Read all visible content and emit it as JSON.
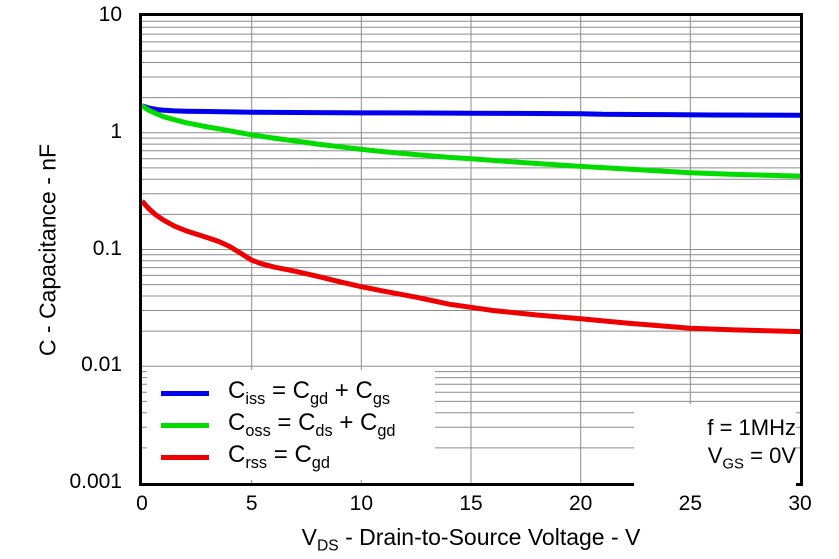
{
  "chart_data": {
    "type": "line",
    "title": "",
    "xlabel": "V_{DS} - Drain-to-Source Voltage - V",
    "ylabel": "C - Capacitance - nF",
    "x_axis": {
      "min": 0,
      "max": 30,
      "scale": "linear",
      "ticks": [
        0,
        5,
        10,
        15,
        20,
        25,
        30
      ]
    },
    "y_axis": {
      "min": 0.001,
      "max": 10,
      "scale": "log",
      "ticks": [
        10,
        1,
        0.1,
        0.01,
        0.001
      ],
      "tick_labels": [
        "10",
        "1",
        "0.1",
        "0.01",
        "0.001"
      ]
    },
    "grid": {
      "on": true,
      "x_major": [
        5,
        10,
        15,
        20,
        25
      ],
      "y_major": [
        1,
        0.1,
        0.01
      ],
      "y_minor_steps": [
        2,
        3,
        4,
        5,
        6,
        7,
        8,
        9
      ]
    },
    "legend_position": "bottom-left",
    "series": [
      {
        "name": "Ciss",
        "label": "C_{iss} = C_{gd} + C_{gs}",
        "color": "#0000EE",
        "points": [
          [
            0,
            1.7
          ],
          [
            0.3,
            1.63
          ],
          [
            0.7,
            1.58
          ],
          [
            1,
            1.56
          ],
          [
            1.5,
            1.54
          ],
          [
            2,
            1.53
          ],
          [
            3,
            1.52
          ],
          [
            4,
            1.51
          ],
          [
            5,
            1.5
          ],
          [
            7,
            1.49
          ],
          [
            10,
            1.48
          ],
          [
            13,
            1.475
          ],
          [
            15,
            1.47
          ],
          [
            17,
            1.465
          ],
          [
            20,
            1.455
          ],
          [
            21,
            1.44
          ],
          [
            24,
            1.43
          ],
          [
            26,
            1.42
          ],
          [
            30,
            1.41
          ]
        ]
      },
      {
        "name": "Coss",
        "label": "C_{oss} = C_{ds} + C_{gd}",
        "color": "#00DC00",
        "points": [
          [
            0,
            1.7
          ],
          [
            0.3,
            1.56
          ],
          [
            0.6,
            1.47
          ],
          [
            1,
            1.37
          ],
          [
            1.5,
            1.29
          ],
          [
            2,
            1.22
          ],
          [
            2.5,
            1.17
          ],
          [
            3,
            1.12
          ],
          [
            3.5,
            1.08
          ],
          [
            4,
            1.04
          ],
          [
            4.5,
            1.0
          ],
          [
            5,
            0.96
          ],
          [
            6,
            0.9
          ],
          [
            7,
            0.85
          ],
          [
            8,
            0.8
          ],
          [
            9,
            0.76
          ],
          [
            10,
            0.72
          ],
          [
            11,
            0.69
          ],
          [
            12.5,
            0.65
          ],
          [
            14,
            0.615
          ],
          [
            15,
            0.6
          ],
          [
            16,
            0.58
          ],
          [
            18,
            0.545
          ],
          [
            20,
            0.515
          ],
          [
            22,
            0.49
          ],
          [
            25,
            0.455
          ],
          [
            27,
            0.44
          ],
          [
            30,
            0.425
          ]
        ]
      },
      {
        "name": "Crss",
        "label": "C_{rss} =  C_{gd}",
        "color": "#EE0000",
        "points": [
          [
            0,
            0.26
          ],
          [
            0.3,
            0.225
          ],
          [
            0.6,
            0.2
          ],
          [
            1,
            0.178
          ],
          [
            1.5,
            0.158
          ],
          [
            2,
            0.145
          ],
          [
            2.5,
            0.135
          ],
          [
            3,
            0.126
          ],
          [
            3.5,
            0.117
          ],
          [
            4,
            0.106
          ],
          [
            4.5,
            0.093
          ],
          [
            5,
            0.081
          ],
          [
            5.5,
            0.075
          ],
          [
            6,
            0.071
          ],
          [
            7,
            0.065
          ],
          [
            8,
            0.059
          ],
          [
            9,
            0.053
          ],
          [
            10,
            0.048
          ],
          [
            11,
            0.044
          ],
          [
            12.5,
            0.039
          ],
          [
            14,
            0.034
          ],
          [
            15,
            0.032
          ],
          [
            16,
            0.03
          ],
          [
            18,
            0.0275
          ],
          [
            20,
            0.0255
          ],
          [
            22,
            0.0235
          ],
          [
            25,
            0.0212
          ],
          [
            27,
            0.0205
          ],
          [
            30,
            0.0198
          ]
        ]
      }
    ],
    "annotation": {
      "line1": "f = 1MHz",
      "line2": "V_{GS} = 0V"
    }
  },
  "colors": {
    "background": "#FFFFFF",
    "frame": "#000000",
    "grid": "#8C8C8C",
    "ciss": "#0000EE",
    "coss": "#00DC00",
    "crss": "#EE0000"
  }
}
